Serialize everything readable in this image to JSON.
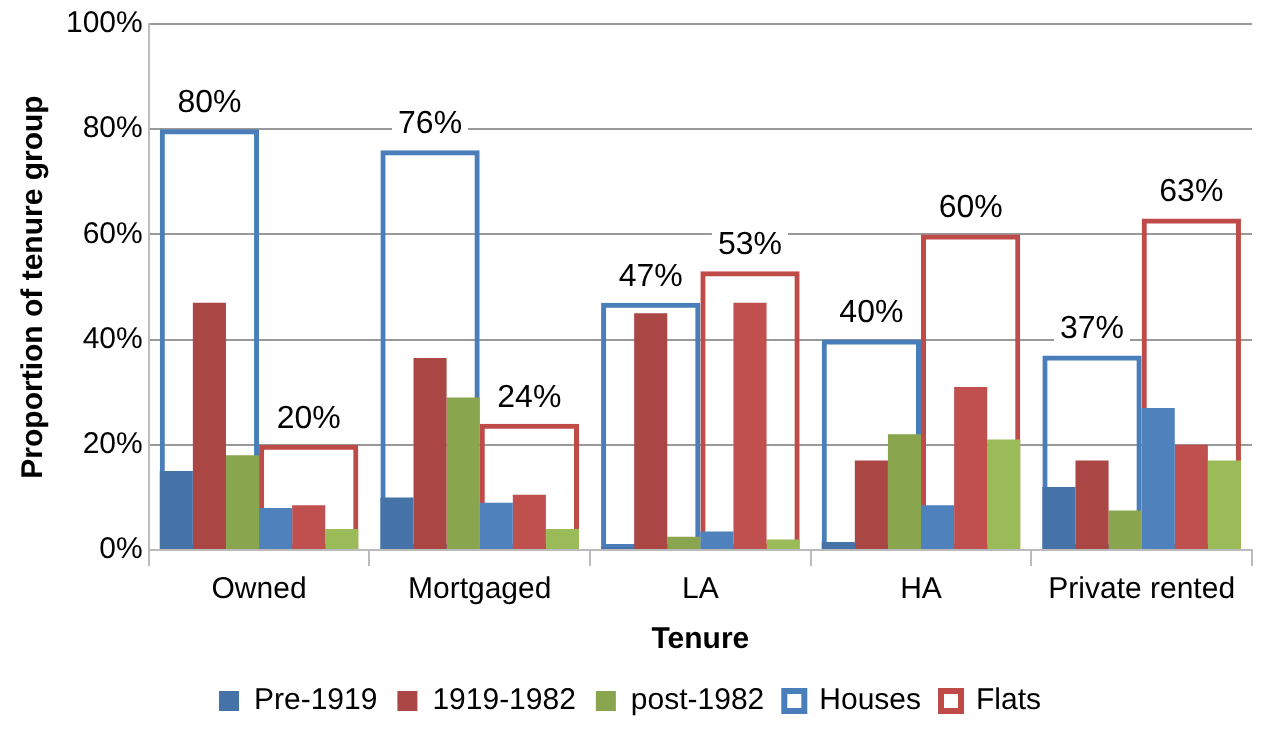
{
  "chart_data": {
    "type": "bar",
    "xlabel": "Tenure",
    "ylabel": "Proportion of tenure group",
    "categories": [
      "Owned",
      "Mortgaged",
      "LA",
      "HA",
      "Private rented"
    ],
    "series": [
      {
        "name": "Pre-1919",
        "color": "#4572a7",
        "values": [
          15,
          10,
          0.5,
          1.5,
          12
        ]
      },
      {
        "name": "1919-1982",
        "color": "#aa4643",
        "values": [
          47,
          36.5,
          45,
          17,
          17
        ]
      },
      {
        "name": "post-1982",
        "color": "#89a54e",
        "values": [
          18,
          29,
          2.5,
          22,
          7.5
        ]
      },
      {
        "color": "#4f81bd",
        "values": [
          8,
          9,
          3.5,
          8.5,
          27
        ]
      },
      {
        "color": "#c0504d",
        "values": [
          8.5,
          10.5,
          47,
          31,
          20
        ]
      },
      {
        "color": "#9bbb59",
        "values": [
          4,
          4,
          2,
          21,
          17
        ]
      },
      {
        "name": "Houses",
        "color": "#4a7ebb",
        "values": [
          80,
          76,
          47,
          40,
          37
        ],
        "value_labels": [
          "80%",
          "76%",
          "47%",
          "40%",
          "37%"
        ]
      },
      {
        "name": "Flats",
        "color": "#be4b48",
        "values": [
          20,
          24,
          53,
          60,
          63
        ],
        "value_labels": [
          "20%",
          "24%",
          "53%",
          "60%",
          "63%"
        ]
      }
    ],
    "ylim": [
      0,
      100
    ],
    "yticks": [
      {
        "value": 0,
        "label": "0%"
      },
      {
        "value": 20,
        "label": "20%"
      },
      {
        "value": 40,
        "label": "40%"
      },
      {
        "value": 60,
        "label": "60%"
      },
      {
        "value": 80,
        "label": "80%"
      },
      {
        "value": 100,
        "label": "100%"
      }
    ],
    "grid": "y",
    "legend": "bottom"
  }
}
